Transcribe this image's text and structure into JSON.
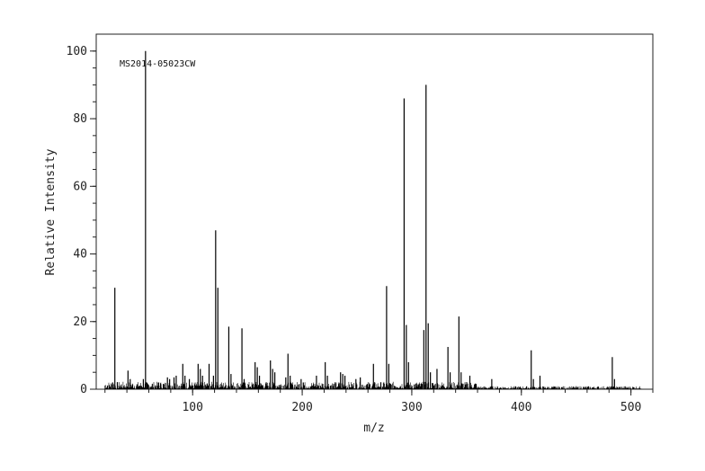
{
  "chart_data": {
    "type": "bar",
    "annotation": "MS2014-05023CW",
    "xlabel": "m/z",
    "ylabel": "Relative Intensity",
    "xlim": [
      12,
      520
    ],
    "ylim": [
      0,
      105
    ],
    "xticks": [
      100,
      200,
      300,
      400,
      500
    ],
    "yticks": [
      0,
      20,
      40,
      60,
      80,
      100
    ],
    "grid": false,
    "color": "#000000",
    "x": [
      27,
      29,
      41,
      43,
      55,
      57,
      69,
      71,
      77,
      79,
      83,
      85,
      91,
      93,
      97,
      105,
      107,
      109,
      115,
      119,
      121,
      123,
      133,
      135,
      145,
      147,
      157,
      159,
      161,
      171,
      173,
      175,
      185,
      187,
      189,
      199,
      201,
      213,
      221,
      223,
      235,
      237,
      239,
      249,
      253,
      265,
      277,
      279,
      293,
      295,
      297,
      311,
      313,
      315,
      317,
      323,
      333,
      335,
      343,
      345,
      353,
      373,
      409,
      411,
      417,
      483,
      485
    ],
    "values": [
      2,
      30,
      5.5,
      3,
      3,
      100,
      2,
      1.5,
      3.5,
      3,
      3.5,
      4,
      7.5,
      4,
      3,
      7.5,
      6,
      4,
      7.5,
      4,
      47,
      30,
      18.5,
      4.5,
      18,
      3,
      8,
      6.5,
      4,
      8.5,
      6,
      5,
      3.5,
      10.5,
      4,
      3,
      2,
      4,
      8,
      4,
      5,
      4.5,
      4,
      3,
      3.5,
      7.5,
      30.5,
      7.5,
      86,
      19,
      8,
      17.5,
      90,
      19.5,
      5,
      6,
      12.5,
      5,
      21.5,
      5,
      4,
      3,
      11.5,
      3,
      4,
      9.5,
      3
    ]
  }
}
